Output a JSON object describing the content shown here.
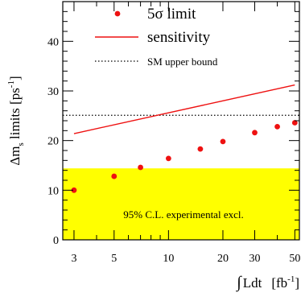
{
  "chart_data": {
    "type": "scatter",
    "x_scale": "log",
    "xlim": [
      2.6,
      53
    ],
    "ylim": [
      0,
      48
    ],
    "x_ticks": [
      3,
      5,
      10,
      20,
      30,
      50
    ],
    "y_ticks": [
      0,
      10,
      20,
      30,
      40
    ],
    "ylabel_main": "Δm",
    "ylabel_sub": "s",
    "ylabel_unit_pre": " limits [ps",
    "ylabel_unit_sup": "-1",
    "ylabel_unit_post": "]",
    "xlabel_integral": "∫",
    "xlabel_main": "Ldt",
    "xlabel_unit_pre": "[fb",
    "xlabel_unit_sup": "-1",
    "xlabel_unit_post": "]",
    "legend": {
      "placement": "top-right",
      "points_label": "5σ limit",
      "line_label": "sensitivity",
      "dotted_label": "SM upper bound"
    },
    "series": [
      {
        "name": "5σ limit",
        "kind": "points",
        "color": "#ee1111",
        "x": [
          3,
          5,
          7,
          10,
          15,
          20,
          30,
          40,
          50
        ],
        "y": [
          10.0,
          12.8,
          14.6,
          16.4,
          18.3,
          19.8,
          21.6,
          22.8,
          23.6
        ]
      },
      {
        "name": "sensitivity",
        "kind": "line",
        "color": "#ee1111",
        "x": [
          3,
          50
        ],
        "y": [
          21.4,
          31.2
        ]
      },
      {
        "name": "SM upper bound",
        "kind": "dotted-hline",
        "color": "#000000",
        "y": 25.1
      }
    ],
    "exclusion_band": {
      "label": "95% C.L. experimental excl.",
      "y_from": 0,
      "y_to": 14.4,
      "color": "#ffff00"
    }
  }
}
